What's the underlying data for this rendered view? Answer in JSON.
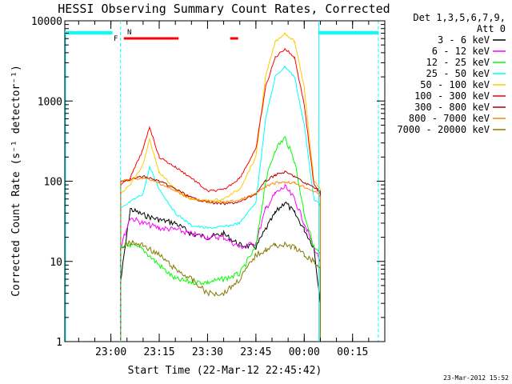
{
  "chart_data": {
    "type": "line",
    "title": "HESSI Observing Summary Count Rates, Corrected",
    "xlabel": "Start Time (22-Mar-12 22:45:42)",
    "ylabel": "Corrected Count Rate (s⁻¹ detector⁻¹)",
    "ylim": [
      1,
      10000
    ],
    "yscale": "log",
    "xlim": [
      "22:45:42",
      "00:25:00"
    ],
    "x_ticks": [
      "23:00",
      "23:15",
      "23:30",
      "23:45",
      "00:00",
      "00:15"
    ],
    "y_ticks": [
      "1",
      "10",
      "100",
      "1000",
      "10000"
    ],
    "grid": false,
    "legend_position": "right",
    "legend_header": [
      "Det 1,3,5,6,7,9,",
      "Att 0"
    ],
    "series": [
      {
        "name": "3 - 6 keV",
        "color": "#000000",
        "points": [
          [
            "23:03",
            5.5
          ],
          [
            "23:06",
            45
          ],
          [
            "23:10",
            38
          ],
          [
            "23:15",
            33
          ],
          [
            "23:20",
            30
          ],
          [
            "23:25",
            22
          ],
          [
            "23:30",
            20
          ],
          [
            "23:35",
            22
          ],
          [
            "23:40",
            16
          ],
          [
            "23:45",
            15
          ],
          [
            "23:48",
            25
          ],
          [
            "23:51",
            40
          ],
          [
            "23:54",
            55
          ],
          [
            "23:57",
            40
          ],
          [
            "00:00",
            25
          ],
          [
            "00:03",
            15
          ],
          [
            "00:05",
            3
          ]
        ]
      },
      {
        "name": "6 - 12 keV",
        "color": "#ff00ff",
        "points": [
          [
            "23:03",
            15
          ],
          [
            "23:06",
            35
          ],
          [
            "23:10",
            30
          ],
          [
            "23:15",
            26
          ],
          [
            "23:20",
            25
          ],
          [
            "23:25",
            22
          ],
          [
            "23:30",
            20
          ],
          [
            "23:35",
            20
          ],
          [
            "23:40",
            15
          ],
          [
            "23:45",
            17
          ],
          [
            "23:48",
            45
          ],
          [
            "23:51",
            70
          ],
          [
            "23:54",
            85
          ],
          [
            "23:57",
            60
          ],
          [
            "00:00",
            30
          ],
          [
            "00:03",
            15
          ],
          [
            "00:05",
            10
          ]
        ]
      },
      {
        "name": "12 - 25 keV",
        "color": "#00ff00",
        "points": [
          [
            "23:03",
            14
          ],
          [
            "23:06",
            16
          ],
          [
            "23:10",
            14
          ],
          [
            "23:15",
            9
          ],
          [
            "23:20",
            6
          ],
          [
            "23:25",
            5.5
          ],
          [
            "23:30",
            5.5
          ],
          [
            "23:35",
            6
          ],
          [
            "23:40",
            7
          ],
          [
            "23:45",
            15
          ],
          [
            "23:48",
            100
          ],
          [
            "23:51",
            250
          ],
          [
            "23:54",
            350
          ],
          [
            "23:57",
            180
          ],
          [
            "00:00",
            40
          ],
          [
            "00:03",
            15
          ],
          [
            "00:05",
            12
          ]
        ]
      },
      {
        "name": "25 - 50 keV",
        "color": "#00ffff",
        "points": [
          [
            "23:03",
            45
          ],
          [
            "23:06",
            55
          ],
          [
            "23:10",
            70
          ],
          [
            "23:12",
            150
          ],
          [
            "23:15",
            80
          ],
          [
            "23:20",
            40
          ],
          [
            "23:25",
            28
          ],
          [
            "23:30",
            26
          ],
          [
            "23:35",
            27
          ],
          [
            "23:40",
            30
          ],
          [
            "23:45",
            55
          ],
          [
            "23:48",
            600
          ],
          [
            "23:51",
            2000
          ],
          [
            "23:54",
            2700
          ],
          [
            "23:57",
            2000
          ],
          [
            "00:00",
            500
          ],
          [
            "00:03",
            60
          ],
          [
            "00:05",
            50
          ]
        ]
      },
      {
        "name": "50 - 100 keV",
        "color": "#ffcc00",
        "points": [
          [
            "23:03",
            70
          ],
          [
            "23:06",
            90
          ],
          [
            "23:10",
            160
          ],
          [
            "23:12",
            330
          ],
          [
            "23:15",
            130
          ],
          [
            "23:20",
            80
          ],
          [
            "23:25",
            60
          ],
          [
            "23:30",
            57
          ],
          [
            "23:35",
            60
          ],
          [
            "23:40",
            80
          ],
          [
            "23:45",
            200
          ],
          [
            "23:48",
            2000
          ],
          [
            "23:51",
            5500
          ],
          [
            "23:54",
            7000
          ],
          [
            "23:57",
            5500
          ],
          [
            "00:00",
            1500
          ],
          [
            "00:03",
            100
          ],
          [
            "00:05",
            80
          ]
        ]
      },
      {
        "name": "100 - 300 keV",
        "color": "#ff0000",
        "points": [
          [
            "23:03",
            90
          ],
          [
            "23:06",
            110
          ],
          [
            "23:10",
            250
          ],
          [
            "23:12",
            480
          ],
          [
            "23:15",
            200
          ],
          [
            "23:20",
            150
          ],
          [
            "23:25",
            110
          ],
          [
            "23:30",
            75
          ],
          [
            "23:35",
            78
          ],
          [
            "23:40",
            110
          ],
          [
            "23:45",
            250
          ],
          [
            "23:48",
            1500
          ],
          [
            "23:51",
            3500
          ],
          [
            "23:54",
            4500
          ],
          [
            "23:57",
            3500
          ],
          [
            "00:00",
            900
          ],
          [
            "00:03",
            90
          ],
          [
            "00:05",
            70
          ]
        ]
      },
      {
        "name": "300 - 800 keV",
        "color": "#b00000",
        "points": [
          [
            "23:03",
            100
          ],
          [
            "23:06",
            105
          ],
          [
            "23:10",
            115
          ],
          [
            "23:15",
            100
          ],
          [
            "23:20",
            80
          ],
          [
            "23:25",
            62
          ],
          [
            "23:30",
            55
          ],
          [
            "23:35",
            52
          ],
          [
            "23:40",
            55
          ],
          [
            "23:45",
            70
          ],
          [
            "23:48",
            100
          ],
          [
            "23:51",
            120
          ],
          [
            "23:54",
            130
          ],
          [
            "23:57",
            115
          ],
          [
            "00:00",
            95
          ],
          [
            "00:03",
            85
          ],
          [
            "00:05",
            75
          ]
        ]
      },
      {
        "name": "800 - 7000 keV",
        "color": "#ff8800",
        "points": [
          [
            "23:03",
            100
          ],
          [
            "23:06",
            105
          ],
          [
            "23:10",
            110
          ],
          [
            "23:15",
            95
          ],
          [
            "23:20",
            75
          ],
          [
            "23:25",
            60
          ],
          [
            "23:30",
            55
          ],
          [
            "23:35",
            55
          ],
          [
            "23:40",
            58
          ],
          [
            "23:45",
            70
          ],
          [
            "23:48",
            85
          ],
          [
            "23:51",
            95
          ],
          [
            "23:54",
            98
          ],
          [
            "23:57",
            95
          ],
          [
            "00:00",
            85
          ],
          [
            "00:03",
            75
          ],
          [
            "00:05",
            65
          ]
        ]
      },
      {
        "name": "7000 - 20000 keV",
        "color": "#887700",
        "points": [
          [
            "23:03",
            15
          ],
          [
            "23:06",
            17
          ],
          [
            "23:10",
            16
          ],
          [
            "23:15",
            12
          ],
          [
            "23:20",
            8
          ],
          [
            "23:25",
            6
          ],
          [
            "23:30",
            4
          ],
          [
            "23:35",
            4
          ],
          [
            "23:40",
            6
          ],
          [
            "23:45",
            12
          ],
          [
            "23:48",
            14
          ],
          [
            "23:51",
            16
          ],
          [
            "23:54",
            16
          ],
          [
            "23:57",
            15
          ],
          [
            "00:00",
            12
          ],
          [
            "00:03",
            10
          ],
          [
            "00:05",
            8
          ]
        ]
      }
    ],
    "flag_labels": [
      "F",
      "N"
    ],
    "flags": {
      "night": [
        [
          "22:45:42",
          "23:00:30"
        ],
        [
          "00:04:30",
          "00:23:00"
        ]
      ],
      "flare": [
        [
          "23:04:00",
          "23:21:00"
        ],
        [
          "23:37:00",
          "23:39:30"
        ]
      ]
    },
    "vertical_lines_dashed": [
      "23:03",
      "00:23"
    ],
    "vertical_lines_solid": [
      "00:04:30"
    ],
    "timestamp": "23-Mar-2012 15:52"
  }
}
